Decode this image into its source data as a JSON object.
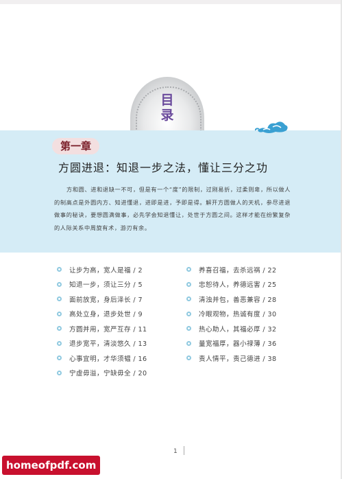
{
  "toc_heading": [
    "目",
    "录"
  ],
  "chapter": {
    "label": "第一章",
    "title": "方圆进退：知退一步之法，懂让三分之功"
  },
  "intro": "方和圆、进和退缺一不可，但是有一个“度”的限制，过刚易折，过柔则卑，所以做人的制高点是外圆内方、知进懂退，进即是进，予即是得。解开方圆做人的天机，参尽进退做事的秘诀，要想圆满做事，必先学会知退懂让，处世于方圆之间。这样才能在纷繁复杂的人际关系中周旋有术，游刃有余。",
  "toc_left": [
    "让步为高，宽人是福 / 2",
    "知退一步，须让三分 / 5",
    "面前放宽，身后泽长 / 7",
    "高处立身，退步处世 / 9",
    "方圆并用，宽严互存 / 11",
    "退步宽平，清淡悠久 / 13",
    "心事宜明，才华须韫 / 16",
    "宁虚毋溢，宁缺毋全 / 20"
  ],
  "toc_right": [
    "养喜召福，去杀远祸 / 22",
    "忠恕待人，养德远害 / 25",
    "清浊并包，善恶兼容 / 28",
    "冷眼观物，热诚有度 / 30",
    "热心助人，其福必厚 / 32",
    "量宽福厚，器小禄薄 / 36",
    "责人情平，责己德进 / 38"
  ],
  "page_number": "1",
  "watermark": "homeofpdf.com",
  "colors": {
    "band": "#d5ecf6",
    "chapter_label_bg": "#f3dfe0",
    "chapter_label_text": "#7a1f2a",
    "heading": "#6a4a9c",
    "bullet": "#8fc9e0",
    "watermark_bg": "#c8102e"
  }
}
